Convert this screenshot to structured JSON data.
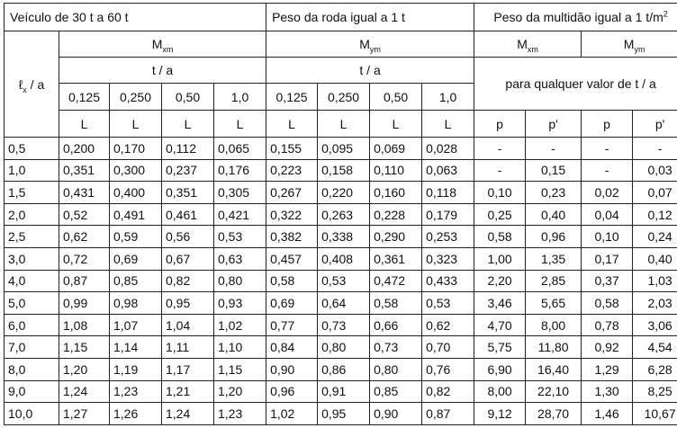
{
  "header": {
    "group1": "Veículo de 30 t a 60 t",
    "group2": "Peso da roda igual a 1 t",
    "group3_text": "Peso da multidão igual a 1 t/m",
    "group3_sup": "2",
    "m": "M",
    "sub_xm": "xm",
    "sub_ym": "ym",
    "ta": "t / a",
    "any_ta": "para qualquer valor de t / a",
    "lx_symbol": "ℓ",
    "lx_sub": "x",
    "lx_rest": " / a",
    "ratios": [
      "0,125",
      "0,250",
      "0,50",
      "1,0",
      "0,125",
      "0,250",
      "0,50",
      "1,0"
    ],
    "l_labels": [
      "L",
      "L",
      "L",
      "L",
      "L",
      "L",
      "L",
      "L"
    ],
    "p_labels": [
      "p",
      "p'",
      "p",
      "p'"
    ]
  },
  "rows": [
    [
      "0,5",
      "0,200",
      "0,170",
      "0,112",
      "0,065",
      "0,155",
      "0,095",
      "0,069",
      "0,028",
      "-",
      "-",
      "-",
      "-"
    ],
    [
      "1,0",
      "0,351",
      "0,300",
      "0,237",
      "0,176",
      "0,223",
      "0,158",
      "0,110",
      "0,063",
      "-",
      "0,15",
      "-",
      "0,03"
    ],
    [
      "1,5",
      "0,431",
      "0,400",
      "0,351",
      "0,305",
      "0,267",
      "0,220",
      "0,160",
      "0,118",
      "0,10",
      "0,23",
      "0,02",
      "0,07"
    ],
    [
      "2,0",
      "0,52",
      "0,491",
      "0,461",
      "0,421",
      "0,322",
      "0,263",
      "0,228",
      "0,179",
      "0,25",
      "0,40",
      "0,04",
      "0,12"
    ],
    [
      "2,5",
      "0,62",
      "0,59",
      "0,56",
      "0,53",
      "0,382",
      "0,338",
      "0,290",
      "0,253",
      "0,58",
      "0,96",
      "0,10",
      "0,24"
    ],
    [
      "3,0",
      "0,72",
      "0,69",
      "0,67",
      "0,63",
      "0,457",
      "0,408",
      "0,361",
      "0,323",
      "1,00",
      "1,35",
      "0,17",
      "0,40"
    ],
    [
      "4,0",
      "0,87",
      "0,85",
      "0,82",
      "0,80",
      "0,58",
      "0,53",
      "0,472",
      "0,433",
      "2,20",
      "2,85",
      "0,37",
      "1,03"
    ],
    [
      "5,0",
      "0,99",
      "0,98",
      "0,95",
      "0,93",
      "0,69",
      "0,64",
      "0,58",
      "0,53",
      "3,46",
      "5,65",
      "0,58",
      "2,03"
    ],
    [
      "6,0",
      "1,08",
      "1,07",
      "1,04",
      "1,02",
      "0,77",
      "0,73",
      "0,66",
      "0,62",
      "4,70",
      "8,00",
      "0,78",
      "3,06"
    ],
    [
      "7,0",
      "1,15",
      "1,14",
      "1,11",
      "1,10",
      "0,84",
      "0,80",
      "0,73",
      "0,70",
      "5,75",
      "11,80",
      "0,92",
      "4,54"
    ],
    [
      "8,0",
      "1,20",
      "1,19",
      "1,17",
      "1,15",
      "0,90",
      "0,86",
      "0,80",
      "0,76",
      "6,90",
      "16,40",
      "1,29",
      "6,28"
    ],
    [
      "9,0",
      "1,24",
      "1,23",
      "1,21",
      "1,20",
      "0,96",
      "0,91",
      "0,85",
      "0,82",
      "8,00",
      "22,10",
      "1,30",
      "8,25"
    ],
    [
      "10,0",
      "1,27",
      "1,26",
      "1,24",
      "1,23",
      "1,02",
      "0,95",
      "0,90",
      "0,87",
      "9,12",
      "28,70",
      "1,46",
      "10,67"
    ]
  ]
}
